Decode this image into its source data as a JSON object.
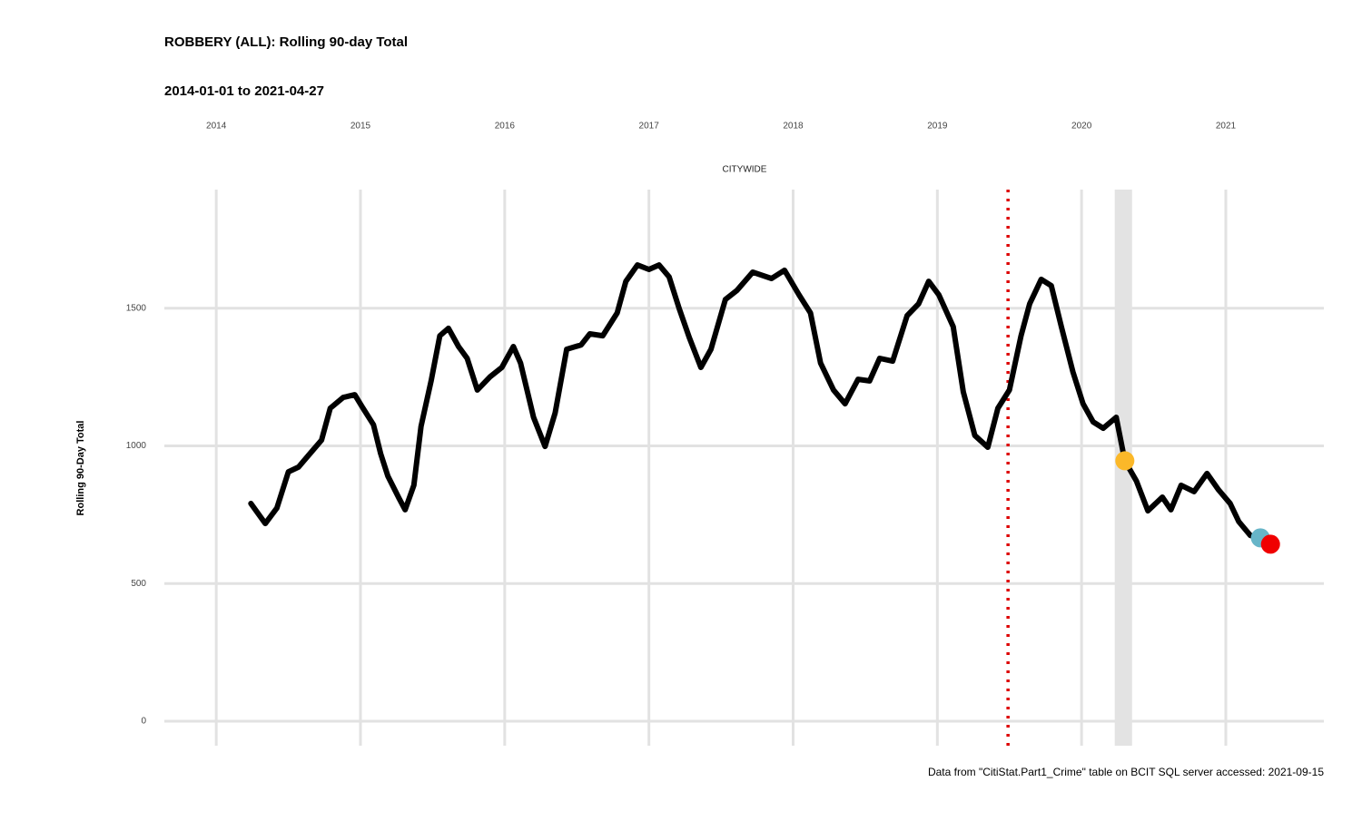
{
  "chart_data": {
    "type": "line",
    "title": "ROBBERY (ALL): Rolling 90-day Total",
    "subtitle": "2014-01-01 to 2021-04-27",
    "facet": "CITYWIDE",
    "y_label": "Rolling 90-Day Total",
    "caption": "Data from \"CitiStat.Part1_Crime\" table on BCIT SQL server accessed: 2021-09-15",
    "x": [
      2014.24,
      2014.34,
      2014.42,
      2014.5,
      2014.57,
      2014.65,
      2014.73,
      2014.79,
      2014.88,
      2014.96,
      2015.01,
      2015.09,
      2015.14,
      2015.19,
      2015.27,
      2015.31,
      2015.37,
      2015.42,
      2015.49,
      2015.55,
      2015.61,
      2015.68,
      2015.74,
      2015.81,
      2015.9,
      2015.98,
      2016.06,
      2016.11,
      2016.2,
      2016.28,
      2016.35,
      2016.43,
      2016.53,
      2016.59,
      2016.68,
      2016.78,
      2016.84,
      2016.92,
      2017.0,
      2017.07,
      2017.14,
      2017.21,
      2017.28,
      2017.36,
      2017.43,
      2017.53,
      2017.61,
      2017.72,
      2017.85,
      2017.94,
      2018.04,
      2018.12,
      2018.19,
      2018.28,
      2018.36,
      2018.45,
      2018.53,
      2018.6,
      2018.69,
      2018.79,
      2018.87,
      2018.94,
      2019.01,
      2019.11,
      2019.18,
      2019.26,
      2019.35,
      2019.42,
      2019.5,
      2019.58,
      2019.64,
      2019.72,
      2019.79,
      2019.86,
      2019.94,
      2020.01,
      2020.08,
      2020.15,
      2020.24,
      2020.3,
      2020.38,
      2020.46,
      2020.56,
      2020.62,
      2020.69,
      2020.78,
      2020.87,
      2020.95,
      2021.03,
      2021.09,
      2021.17,
      2021.24
    ],
    "values": [
      791,
      718,
      774,
      906,
      923,
      972,
      1021,
      1137,
      1176,
      1186,
      1143,
      1077,
      972,
      890,
      807,
      768,
      857,
      1071,
      1236,
      1400,
      1427,
      1361,
      1318,
      1203,
      1252,
      1285,
      1361,
      1301,
      1104,
      998,
      1120,
      1351,
      1367,
      1407,
      1400,
      1483,
      1598,
      1657,
      1641,
      1657,
      1614,
      1499,
      1394,
      1285,
      1351,
      1532,
      1565,
      1631,
      1608,
      1638,
      1549,
      1483,
      1301,
      1203,
      1153,
      1242,
      1236,
      1318,
      1308,
      1473,
      1516,
      1598,
      1549,
      1433,
      1196,
      1038,
      995,
      1137,
      1203,
      1400,
      1516,
      1605,
      1582,
      1433,
      1269,
      1153,
      1087,
      1064,
      1104,
      946,
      873,
      764,
      814,
      768,
      857,
      834,
      900,
      840,
      791,
      725,
      675,
      666
    ],
    "color": "#000000",
    "points": [
      {
        "x": 2020.3,
        "y": 946,
        "color": "#fbb829"
      },
      {
        "x": 2021.24,
        "y": 666,
        "color": "#67b5c8"
      },
      {
        "x": 2021.31,
        "y": 643,
        "color": "#f00000"
      }
    ],
    "vline": {
      "x": 2019.49,
      "color": "#dd0000"
    },
    "band": {
      "x": [
        2020.23,
        2020.35
      ],
      "color": "#e3e3e3"
    },
    "xlim": [
      2013.64,
      2021.68
    ],
    "xticks": [
      2014,
      2015,
      2016,
      2017,
      2018,
      2019,
      2020,
      2021
    ],
    "ylim": [
      -89,
      1931
    ],
    "yticks": [
      0,
      500,
      1000,
      1500
    ],
    "grid": true
  }
}
